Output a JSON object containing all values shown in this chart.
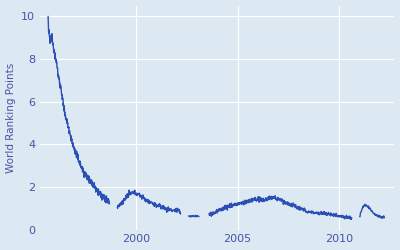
{
  "ylabel": "World Ranking Points",
  "background_color": "#dce8f2",
  "plot_background": "#dce8f2",
  "line_color": "#2b4fb5",
  "line_width": 1.0,
  "xlim": [
    1995.3,
    2012.7
  ],
  "ylim": [
    0,
    10.5
  ],
  "yticks": [
    0,
    2,
    4,
    6,
    8,
    10
  ],
  "xticks": [
    2000,
    2005,
    2010
  ],
  "grid_color": "#c5d8ec",
  "tick_color": "#4455aa",
  "label_color": "#4455aa",
  "ylabel_fontsize": 7.5,
  "tick_fontsize": 8
}
